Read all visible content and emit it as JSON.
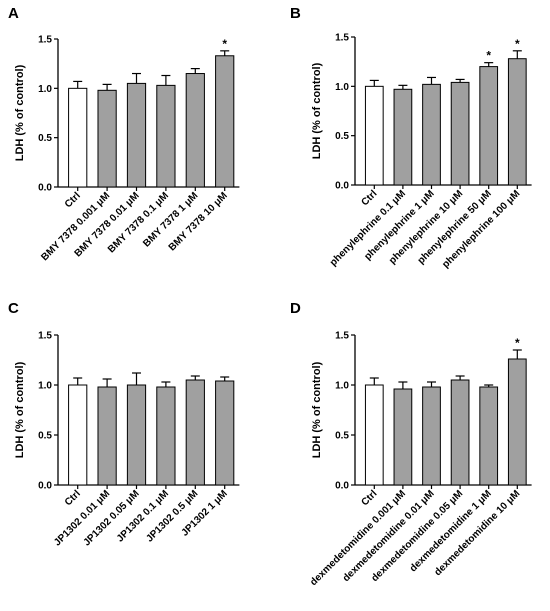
{
  "chart_data": [
    {
      "panel": "A",
      "type": "bar",
      "ylabel": "LDH (% of control)",
      "ylim": [
        0,
        1.5
      ],
      "yticks": [
        "0.0",
        "0.5",
        "1.0",
        "1.5"
      ],
      "categories": [
        "Ctrl",
        "BMY 7378 0.001 μM",
        "BMY 7378 0.01 μM",
        "BMY 7378 0.1 μM",
        "BMY 7378 1 μM",
        "BMY 7378 10 μM"
      ],
      "values": [
        1.0,
        0.98,
        1.05,
        1.03,
        1.15,
        1.33
      ],
      "errors": [
        0.07,
        0.06,
        0.1,
        0.1,
        0.05,
        0.05
      ],
      "significance": [
        "",
        "",
        "",
        "",
        "",
        "*"
      ],
      "colors": [
        "#ffffff",
        "#a0a0a0",
        "#a0a0a0",
        "#a0a0a0",
        "#a0a0a0",
        "#a0a0a0"
      ]
    },
    {
      "panel": "B",
      "type": "bar",
      "ylabel": "LDH (% of control)",
      "ylim": [
        0,
        1.5
      ],
      "yticks": [
        "0.0",
        "0.5",
        "1.0",
        "1.5"
      ],
      "categories": [
        "Ctrl",
        "phenylephrine 0.1 μM",
        "phenylephrine 1 μM",
        "phenylephrine 10 μM",
        "phenylephrine 50 μM",
        "phenylephrine 100 μM"
      ],
      "values": [
        1.0,
        0.97,
        1.02,
        1.04,
        1.2,
        1.28
      ],
      "errors": [
        0.06,
        0.04,
        0.07,
        0.03,
        0.04,
        0.08
      ],
      "significance": [
        "",
        "",
        "",
        "",
        "*",
        "*"
      ],
      "colors": [
        "#ffffff",
        "#a0a0a0",
        "#a0a0a0",
        "#a0a0a0",
        "#a0a0a0",
        "#a0a0a0"
      ]
    },
    {
      "panel": "C",
      "type": "bar",
      "ylabel": "LDH (% of control)",
      "ylim": [
        0,
        1.5
      ],
      "yticks": [
        "0.0",
        "0.5",
        "1.0",
        "1.5"
      ],
      "categories": [
        "Ctrl",
        "JP1302 0.01 μM",
        "JP1302 0.05 μM",
        "JP1302 0.1 μM",
        "JP1302 0.5 μM",
        "JP1302 1 μM"
      ],
      "values": [
        1.0,
        0.98,
        1.0,
        0.98,
        1.05,
        1.04
      ],
      "errors": [
        0.07,
        0.08,
        0.12,
        0.05,
        0.04,
        0.04
      ],
      "significance": [
        "",
        "",
        "",
        "",
        "",
        ""
      ],
      "colors": [
        "#ffffff",
        "#a0a0a0",
        "#a0a0a0",
        "#a0a0a0",
        "#a0a0a0",
        "#a0a0a0"
      ]
    },
    {
      "panel": "D",
      "type": "bar",
      "ylabel": "LDH (% of control)",
      "ylim": [
        0,
        1.5
      ],
      "yticks": [
        "0.0",
        "0.5",
        "1.0",
        "1.5"
      ],
      "categories": [
        "Ctrl",
        "dexmedetomidine 0.001 μM",
        "dexmedetomidine 0.01 μM",
        "dexmedetomidine 0.05 μM",
        "dexmedetomidine 1 μM",
        "dexmedetomidine 10 μM"
      ],
      "values": [
        1.0,
        0.96,
        0.98,
        1.05,
        0.98,
        1.26
      ],
      "errors": [
        0.07,
        0.07,
        0.05,
        0.04,
        0.02,
        0.09
      ],
      "significance": [
        "",
        "",
        "",
        "",
        "",
        "*"
      ],
      "colors": [
        "#ffffff",
        "#a0a0a0",
        "#a0a0a0",
        "#a0a0a0",
        "#a0a0a0",
        "#a0a0a0"
      ]
    }
  ]
}
